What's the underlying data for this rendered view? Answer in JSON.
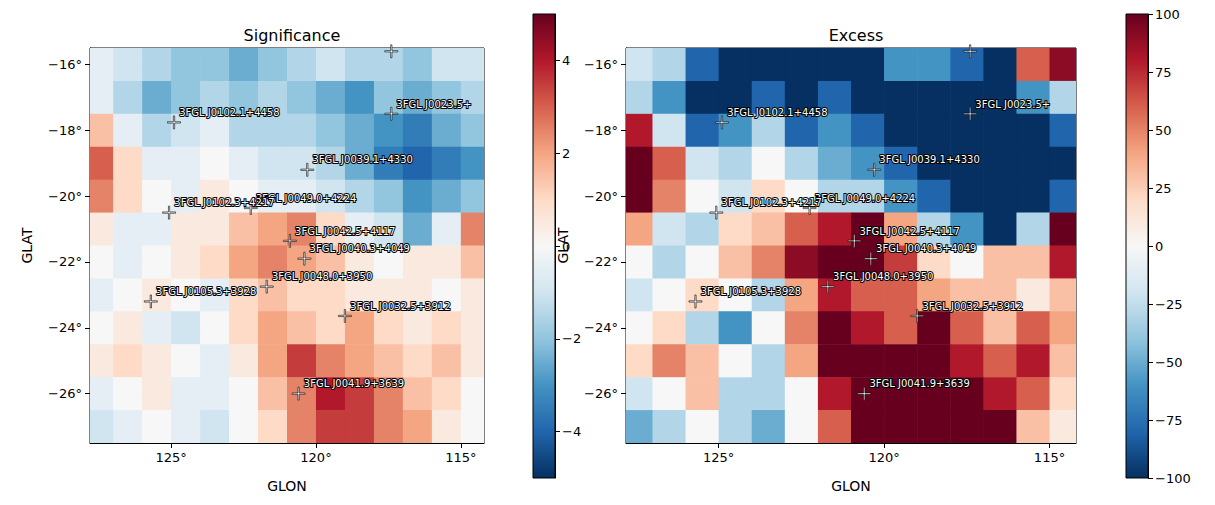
{
  "chart_data": [
    {
      "type": "heatmap",
      "title": "Significance",
      "x_label": "GLON",
      "y_label": "GLAT",
      "x": [
        127.5,
        126.5,
        125.5,
        124.5,
        123.5,
        122.5,
        121.5,
        120.5,
        119.5,
        118.5,
        117.5,
        116.5,
        115.5,
        114.5
      ],
      "y": [
        -16,
        -17,
        -18,
        -19,
        -20,
        -21,
        -22,
        -23,
        -24,
        -25,
        -26,
        -27
      ],
      "values": [
        [
          -0.5,
          -1,
          -1.5,
          -2,
          -2,
          -2.5,
          -2,
          -1.5,
          -1,
          -1.5,
          -1.5,
          -2,
          -1,
          -1
        ],
        [
          -0.5,
          -1.5,
          -2.5,
          -2,
          -1.5,
          -2,
          -1.5,
          -2,
          -2.5,
          -3,
          -2,
          -2.5,
          -2,
          -1.5
        ],
        [
          1.5,
          -0.5,
          -1.5,
          -1,
          -0.5,
          -1.5,
          -1.5,
          -1.5,
          -2,
          -2.5,
          -3,
          -3.5,
          -2.5,
          -2
        ],
        [
          3,
          1,
          -0.5,
          -0.5,
          0,
          -0.5,
          -1,
          -1,
          -1.5,
          -2.5,
          -3.5,
          -4,
          -3.5,
          -3
        ],
        [
          2.5,
          1,
          0,
          -0.5,
          0.5,
          0,
          -0.5,
          -0.5,
          -1,
          -1.5,
          -2,
          -3,
          -2.5,
          -2
        ],
        [
          0.5,
          -0.5,
          -0.5,
          0.5,
          0.5,
          1.5,
          2,
          2.5,
          1,
          -0.5,
          -1,
          -2.5,
          -0.5,
          2.5
        ],
        [
          0,
          -0.5,
          0,
          0.5,
          1,
          2,
          2.5,
          2,
          1.5,
          0.5,
          0,
          0.5,
          0.5,
          1.5
        ],
        [
          -0.5,
          0,
          0.5,
          0,
          -0.5,
          1,
          1.5,
          1,
          1,
          0.5,
          0.5,
          0.5,
          0,
          0.5
        ],
        [
          0,
          0.5,
          -0.5,
          -1,
          0,
          1,
          2,
          1.5,
          1,
          2,
          1,
          0.5,
          1,
          0.5
        ],
        [
          0.5,
          1,
          0.5,
          0,
          -0.5,
          0.5,
          2,
          3.5,
          2.5,
          2,
          1.5,
          1,
          1.5,
          0.5
        ],
        [
          -0.5,
          0,
          0.5,
          -0.5,
          -0.5,
          0,
          1.5,
          2.5,
          4,
          3.5,
          2.5,
          1.5,
          1,
          0
        ],
        [
          -1,
          -0.5,
          0,
          -0.5,
          -1,
          0,
          1,
          2.5,
          3.5,
          3.5,
          2.5,
          2,
          0.5,
          0
        ]
      ],
      "xlim": [
        127.8,
        114.2
      ],
      "ylim": [
        -27.5,
        -15.5
      ],
      "xticks": [
        {
          "value": 125,
          "label": "125°"
        },
        {
          "value": 120,
          "label": "120°"
        },
        {
          "value": 115,
          "label": "115°"
        }
      ],
      "yticks": [
        {
          "value": -16,
          "label": "−16°"
        },
        {
          "value": -18,
          "label": "−18°"
        },
        {
          "value": -20,
          "label": "−20°"
        },
        {
          "value": -22,
          "label": "−22°"
        },
        {
          "value": -24,
          "label": "−24°"
        },
        {
          "value": -26,
          "label": "−26°"
        }
      ],
      "colorbar_range": [
        -5,
        5
      ],
      "colorbar_ticks": [
        {
          "value": -4,
          "label": "−4"
        },
        {
          "value": -2,
          "label": "−2"
        },
        0,
        2,
        4
      ],
      "grid": true,
      "marker": "plus",
      "sources": [
        {
          "name": "3FGL J0102.1+4458",
          "glon": 124.9,
          "glat": -17.76
        },
        {
          "name": "3FGL J0023.5+",
          "glon": 117.4,
          "glat": -17.5
        },
        {
          "name": null,
          "glon": 117.4,
          "glat": -15.6
        },
        {
          "name": "3FGL J0039.1+4330",
          "glon": 120.3,
          "glat": -19.2
        },
        {
          "name": "3FGL J0049.0+4224",
          "glon": 122.25,
          "glat": -20.36
        },
        {
          "name": "3FGL J0102.3+4217",
          "glon": 125.07,
          "glat": -20.5
        },
        {
          "name": "3FGL J0042.5+4117",
          "glon": 120.9,
          "glat": -21.36
        },
        {
          "name": "3FGL J0040.3+4049",
          "glon": 120.4,
          "glat": -21.9
        },
        {
          "name": "3FGL J0048.0+3950",
          "glon": 121.7,
          "glat": -22.75
        },
        {
          "name": "3FGL J0105.3+3928",
          "glon": 125.7,
          "glat": -23.2
        },
        {
          "name": "3FGL J0032.5+3912",
          "glon": 119.0,
          "glat": -23.64
        },
        {
          "name": "3FGL J0041.9+3639",
          "glon": 120.6,
          "glat": -26.0
        }
      ]
    },
    {
      "type": "heatmap",
      "title": "Excess",
      "x_label": "GLON",
      "y_label": "GLAT",
      "x": [
        127.5,
        126.5,
        125.5,
        124.5,
        123.5,
        122.5,
        121.5,
        120.5,
        119.5,
        118.5,
        117.5,
        116.5,
        115.5,
        114.5
      ],
      "y": [
        -16,
        -17,
        -18,
        -19,
        -20,
        -21,
        -22,
        -23,
        -24,
        -25,
        -26,
        -27
      ],
      "values": [
        [
          -20,
          -30,
          -80,
          -100,
          -100,
          -100,
          -100,
          -100,
          -60,
          -60,
          -80,
          -100,
          60,
          90
        ],
        [
          -30,
          -60,
          -100,
          -100,
          -80,
          -100,
          -80,
          -100,
          -100,
          -100,
          -100,
          -100,
          -60,
          -30
        ],
        [
          80,
          -20,
          -80,
          -60,
          -30,
          -80,
          -60,
          -80,
          -100,
          -100,
          -100,
          -100,
          -100,
          -80
        ],
        [
          110,
          60,
          -20,
          -30,
          0,
          -30,
          -50,
          -60,
          -80,
          -100,
          -110,
          -110,
          -110,
          -100
        ],
        [
          110,
          50,
          0,
          -20,
          20,
          0,
          -30,
          -30,
          -60,
          -80,
          -100,
          -110,
          -100,
          -80
        ],
        [
          40,
          -20,
          -30,
          20,
          30,
          60,
          80,
          100,
          40,
          -30,
          -60,
          -100,
          -30,
          100
        ],
        [
          0,
          -30,
          0,
          30,
          50,
          90,
          110,
          100,
          70,
          20,
          0,
          30,
          30,
          80
        ],
        [
          -20,
          0,
          20,
          0,
          -30,
          40,
          80,
          60,
          60,
          40,
          30,
          30,
          10,
          30
        ],
        [
          0,
          20,
          -30,
          -60,
          0,
          50,
          100,
          80,
          60,
          100,
          60,
          30,
          60,
          40
        ],
        [
          20,
          50,
          30,
          0,
          -30,
          40,
          100,
          110,
          110,
          100,
          80,
          60,
          80,
          30
        ],
        [
          -20,
          0,
          30,
          -30,
          -30,
          0,
          80,
          110,
          110,
          110,
          110,
          80,
          60,
          20
        ],
        [
          -50,
          -30,
          0,
          -30,
          -50,
          0,
          60,
          110,
          110,
          110,
          110,
          100,
          30,
          10
        ]
      ],
      "xlim": [
        127.8,
        114.2
      ],
      "ylim": [
        -27.5,
        -15.5
      ],
      "xticks": [
        {
          "value": 125,
          "label": "125°"
        },
        {
          "value": 120,
          "label": "120°"
        },
        {
          "value": 115,
          "label": "115°"
        }
      ],
      "yticks": [
        {
          "value": -16,
          "label": "−16°"
        },
        {
          "value": -18,
          "label": "−18°"
        },
        {
          "value": -20,
          "label": "−20°"
        },
        {
          "value": -22,
          "label": "−22°"
        },
        {
          "value": -24,
          "label": "−24°"
        },
        {
          "value": -26,
          "label": "−26°"
        }
      ],
      "colorbar_range": [
        -100,
        100
      ],
      "colorbar_ticks": [
        {
          "value": -100,
          "label": "−100"
        },
        {
          "value": -75,
          "label": "−75"
        },
        {
          "value": -50,
          "label": "−50"
        },
        {
          "value": -25,
          "label": "−25"
        },
        0,
        25,
        50,
        75,
        100
      ],
      "grid": true,
      "marker": "plus",
      "sources": [
        {
          "name": "3FGL J0102.1+4458",
          "glon": 124.9,
          "glat": -17.76
        },
        {
          "name": "3FGL J0023.5+",
          "glon": 117.4,
          "glat": -17.5
        },
        {
          "name": null,
          "glon": 117.4,
          "glat": -15.6
        },
        {
          "name": "3FGL J0039.1+4330",
          "glon": 120.3,
          "glat": -19.2
        },
        {
          "name": "3FGL J0049.0+4224",
          "glon": 122.25,
          "glat": -20.36
        },
        {
          "name": "3FGL J0102.3+4217",
          "glon": 125.07,
          "glat": -20.5
        },
        {
          "name": "3FGL J0042.5+4117",
          "glon": 120.9,
          "glat": -21.36
        },
        {
          "name": "3FGL J0040.3+4049",
          "glon": 120.4,
          "glat": -21.9
        },
        {
          "name": "3FGL J0048.0+3950",
          "glon": 121.7,
          "glat": -22.75
        },
        {
          "name": "3FGL J0105.3+3928",
          "glon": 125.7,
          "glat": -23.2
        },
        {
          "name": "3FGL J0032.5+3912",
          "glon": 119.0,
          "glat": -23.64
        },
        {
          "name": "3FGL J0041.9+3639",
          "glon": 120.6,
          "glat": -26.0
        }
      ]
    }
  ]
}
